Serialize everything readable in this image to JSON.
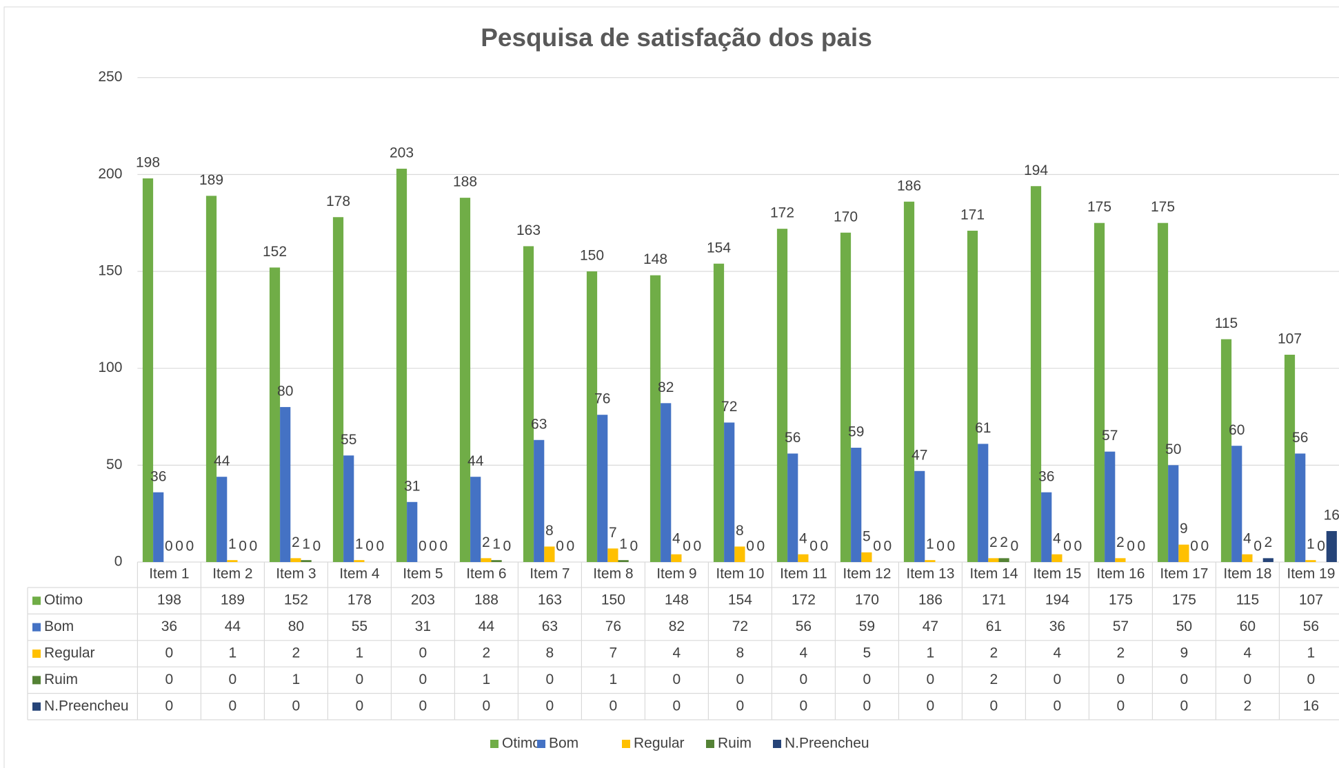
{
  "chart_data": {
    "type": "bar",
    "title": "Pesquisa de satisfação dos pais",
    "categories": [
      "Item 1",
      "Item 2",
      "Item 3",
      "Item 4",
      "Item 5",
      "Item 6",
      "Item 7",
      "Item 8",
      "Item 9",
      "Item 10",
      "Item 11",
      "Item 12",
      "Item 13",
      "Item 14",
      "Item 15",
      "Item 16",
      "Item 17",
      "Item 18",
      "Item 19"
    ],
    "series": [
      {
        "name": "Otimo",
        "color": "#70ad47",
        "values": [
          198,
          189,
          152,
          178,
          203,
          188,
          163,
          150,
          148,
          154,
          172,
          170,
          186,
          171,
          194,
          175,
          175,
          115,
          107
        ]
      },
      {
        "name": "Bom",
        "color": "#4472c4",
        "values": [
          36,
          44,
          80,
          55,
          31,
          44,
          63,
          76,
          82,
          72,
          56,
          59,
          47,
          61,
          36,
          57,
          50,
          60,
          56
        ]
      },
      {
        "name": "Regular",
        "color": "#ffc000",
        "values": [
          0,
          1,
          2,
          1,
          0,
          2,
          8,
          7,
          4,
          8,
          4,
          5,
          1,
          2,
          4,
          2,
          9,
          4,
          1
        ]
      },
      {
        "name": "Ruim",
        "color": "#548235",
        "values": [
          0,
          0,
          1,
          0,
          0,
          1,
          0,
          1,
          0,
          0,
          0,
          0,
          0,
          2,
          0,
          0,
          0,
          0,
          0
        ]
      },
      {
        "name": "N.Preencheu",
        "color": "#264478",
        "values": [
          0,
          0,
          0,
          0,
          0,
          0,
          0,
          0,
          0,
          0,
          0,
          0,
          0,
          0,
          0,
          0,
          0,
          2,
          16
        ]
      }
    ],
    "ylim": [
      0,
      250
    ],
    "yticks": [
      0,
      50,
      100,
      150,
      200,
      250
    ],
    "grid": true,
    "legend": "bottom"
  }
}
